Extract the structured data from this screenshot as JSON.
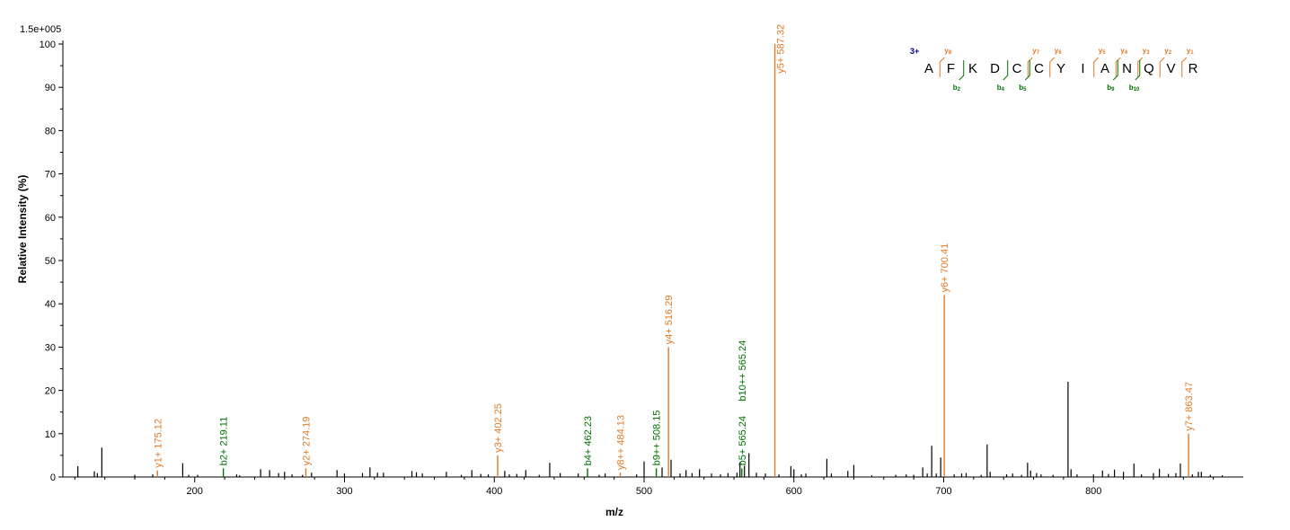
{
  "chart_data": {
    "type": "bar",
    "subtype": "mass-spectrum",
    "xlabel": "m/z",
    "ylabel": "Relative  Intensity (%)",
    "scale_label": "1.5e+005",
    "xlim": [
      112,
      900
    ],
    "ylim": [
      0,
      100
    ],
    "x_ticks": [
      200,
      300,
      400,
      500,
      600,
      700,
      800
    ],
    "y_ticks": [
      0,
      10,
      20,
      30,
      40,
      50,
      60,
      70,
      80,
      90,
      100
    ],
    "colors": {
      "y_ion": "#E07A28",
      "b_ion": "#007000",
      "unassigned": "#000000",
      "charge": "#00008B"
    },
    "annotated_peaks": [
      {
        "mz": 175.12,
        "intensity": 1.5,
        "label": "y1+ 175.12",
        "ion": "y"
      },
      {
        "mz": 219.11,
        "intensity": 2.0,
        "label": "b2+ 219.11",
        "ion": "b"
      },
      {
        "mz": 274.19,
        "intensity": 2.0,
        "label": "y2+ 274.19",
        "ion": "y"
      },
      {
        "mz": 402.25,
        "intensity": 5.0,
        "label": "y3+ 402.25",
        "ion": "y"
      },
      {
        "mz": 462.23,
        "intensity": 2.0,
        "label": "b4+ 462.23",
        "ion": "b"
      },
      {
        "mz": 484.13,
        "intensity": 1.0,
        "label": "y8++ 484.13",
        "ion": "y"
      },
      {
        "mz": 508.15,
        "intensity": 2.0,
        "label": "b9++ 508.15",
        "ion": "b"
      },
      {
        "mz": 516.29,
        "intensity": 30.0,
        "label": "y4+ 516.29",
        "ion": "y"
      },
      {
        "mz": 565.24,
        "intensity": 2.0,
        "label": "b5+ 565.24",
        "ion": "b"
      },
      {
        "mz": 565.24,
        "intensity": 17.5,
        "label": "b10++ 565.24",
        "ion": "b",
        "stacked": true
      },
      {
        "mz": 587.32,
        "intensity": 100.0,
        "label": "y5+ 587.32",
        "ion": "y"
      },
      {
        "mz": 700.41,
        "intensity": 42.0,
        "label": "y6+ 700.41",
        "ion": "y"
      },
      {
        "mz": 863.47,
        "intensity": 10.0,
        "label": "y7+ 863.47",
        "ion": "y"
      }
    ],
    "other_peaks": [
      [
        122,
        2.5
      ],
      [
        133,
        1.3
      ],
      [
        135,
        0.9
      ],
      [
        138,
        6.8
      ],
      [
        160,
        0.5
      ],
      [
        172,
        0.6
      ],
      [
        192,
        3.2
      ],
      [
        196,
        0.5
      ],
      [
        202,
        0.5
      ],
      [
        228,
        0.6
      ],
      [
        230,
        0.4
      ],
      [
        244,
        1.8
      ],
      [
        250,
        1.6
      ],
      [
        256,
        0.9
      ],
      [
        260,
        1.2
      ],
      [
        265,
        0.6
      ],
      [
        272,
        0.5
      ],
      [
        278,
        1.0
      ],
      [
        295,
        1.6
      ],
      [
        300,
        0.8
      ],
      [
        312,
        0.9
      ],
      [
        317,
        2.2
      ],
      [
        322,
        1.0
      ],
      [
        326,
        1.0
      ],
      [
        345,
        1.4
      ],
      [
        348,
        1.1
      ],
      [
        352,
        0.8
      ],
      [
        368,
        1.2
      ],
      [
        378,
        0.5
      ],
      [
        385,
        1.6
      ],
      [
        391,
        0.7
      ],
      [
        396,
        0.6
      ],
      [
        407,
        1.4
      ],
      [
        410,
        0.6
      ],
      [
        415,
        0.7
      ],
      [
        421,
        1.6
      ],
      [
        430,
        0.5
      ],
      [
        437,
        3.3
      ],
      [
        444,
        0.9
      ],
      [
        456,
        0.8
      ],
      [
        470,
        0.5
      ],
      [
        474,
        0.8
      ],
      [
        495,
        0.6
      ],
      [
        500,
        3.6
      ],
      [
        512,
        2.2
      ],
      [
        518,
        4.0
      ],
      [
        524,
        0.8
      ],
      [
        528,
        1.6
      ],
      [
        532,
        0.9
      ],
      [
        537,
        1.8
      ],
      [
        545,
        0.8
      ],
      [
        551,
        0.6
      ],
      [
        556,
        0.9
      ],
      [
        562,
        1.0
      ],
      [
        564,
        3.4
      ],
      [
        567,
        2.6
      ],
      [
        570,
        5.5
      ],
      [
        575,
        1.0
      ],
      [
        581,
        0.8
      ],
      [
        590,
        0.6
      ],
      [
        598,
        2.5
      ],
      [
        600,
        1.8
      ],
      [
        605,
        0.6
      ],
      [
        608,
        0.8
      ],
      [
        622,
        4.2
      ],
      [
        625,
        0.8
      ],
      [
        636,
        1.4
      ],
      [
        640,
        2.8
      ],
      [
        652,
        0.4
      ],
      [
        668,
        0.5
      ],
      [
        675,
        0.6
      ],
      [
        680,
        0.5
      ],
      [
        686,
        2.2
      ],
      [
        689,
        0.8
      ],
      [
        692,
        7.2
      ],
      [
        695,
        0.8
      ],
      [
        698,
        4.5
      ],
      [
        707,
        0.6
      ],
      [
        712,
        0.8
      ],
      [
        715,
        0.9
      ],
      [
        725,
        0.5
      ],
      [
        729,
        7.5
      ],
      [
        731,
        1.2
      ],
      [
        742,
        0.6
      ],
      [
        746,
        0.8
      ],
      [
        752,
        0.5
      ],
      [
        756,
        3.3
      ],
      [
        758,
        1.5
      ],
      [
        762,
        0.9
      ],
      [
        765,
        0.6
      ],
      [
        773,
        0.5
      ],
      [
        783,
        22.0
      ],
      [
        785,
        1.8
      ],
      [
        789,
        0.6
      ],
      [
        800,
        0.6
      ],
      [
        806,
        1.5
      ],
      [
        810,
        0.7
      ],
      [
        814,
        1.7
      ],
      [
        820,
        1.2
      ],
      [
        827,
        3.1
      ],
      [
        832,
        0.6
      ],
      [
        840,
        0.9
      ],
      [
        844,
        1.9
      ],
      [
        850,
        0.7
      ],
      [
        855,
        0.9
      ],
      [
        858,
        3.1
      ],
      [
        866,
        0.6
      ],
      [
        870,
        1.2
      ],
      [
        872,
        1.2
      ],
      [
        878,
        0.5
      ],
      [
        886,
        0.4
      ]
    ],
    "peptide": {
      "charge": "3+",
      "sequence": [
        "A",
        "F",
        "K",
        "D",
        "C",
        "C",
        "Y",
        "I",
        "A",
        "N",
        "Q",
        "V",
        "R"
      ],
      "y_ions": [
        {
          "after": 1,
          "label": "y",
          "num": "8"
        },
        {
          "after": 5,
          "label": "y",
          "num": "7"
        },
        {
          "after": 6,
          "label": "y",
          "num": "6"
        },
        {
          "after": 8,
          "label": "y",
          "num": "5"
        },
        {
          "after": 9,
          "label": "y",
          "num": "4"
        },
        {
          "after": 10,
          "label": "y",
          "num": "3"
        },
        {
          "after": 11,
          "label": "y",
          "num": "2"
        },
        {
          "after": 12,
          "label": "y",
          "num": "1"
        }
      ],
      "b_ions": [
        {
          "after": 2,
          "label": "b",
          "num": "2"
        },
        {
          "after": 4,
          "label": "b",
          "num": "4"
        },
        {
          "after": 5,
          "label": "b",
          "num": "5"
        },
        {
          "after": 9,
          "label": "b",
          "num": "9"
        },
        {
          "after": 10,
          "label": "b",
          "num": "10"
        }
      ]
    }
  }
}
